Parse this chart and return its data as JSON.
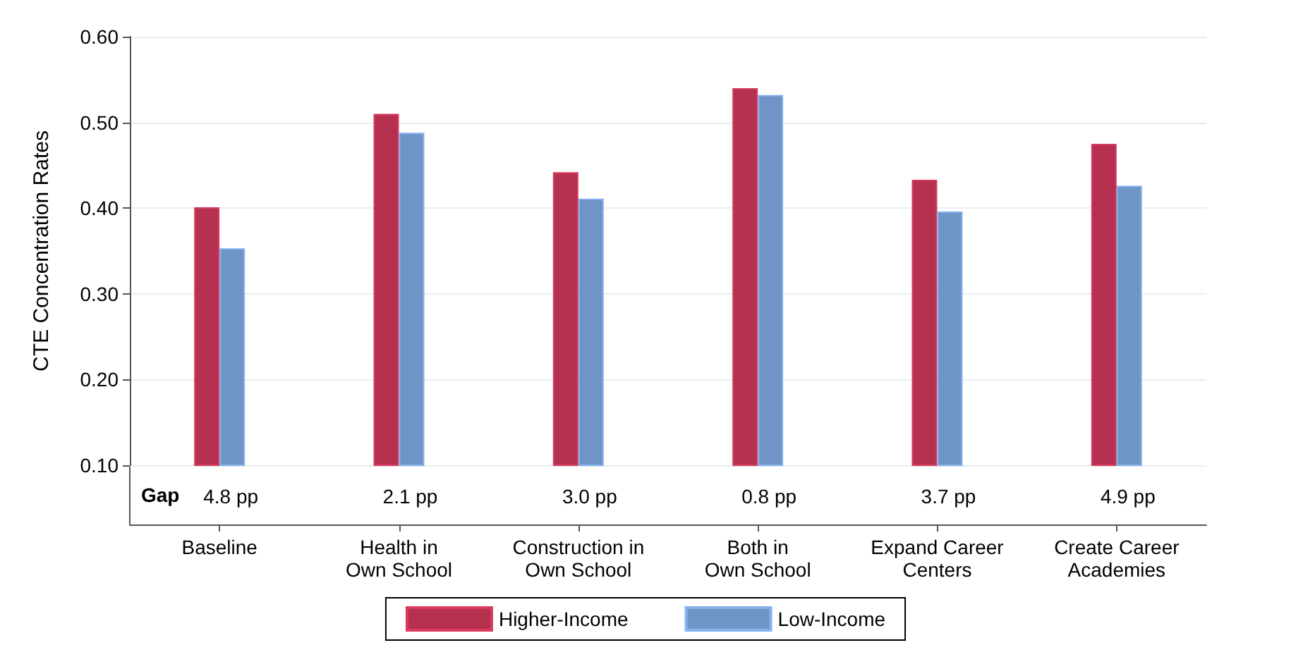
{
  "chart_data": {
    "type": "bar",
    "ylabel": "CTE Concentration Rates",
    "categories": [
      "Baseline",
      "Health in\nOwn School",
      "Construction in\nOwn School",
      "Both in\nOwn School",
      "Expand Career\nCenters",
      "Create Career\nAcademies"
    ],
    "series": [
      {
        "name": "Higher-Income",
        "color": "#b5314f",
        "values": [
          0.401,
          0.51,
          0.442,
          0.54,
          0.433,
          0.475
        ]
      },
      {
        "name": "Low-Income",
        "color": "#6f95c7",
        "values": [
          0.353,
          0.488,
          0.411,
          0.532,
          0.396,
          0.426
        ]
      }
    ],
    "ylim": [
      0.1,
      0.6
    ],
    "yticks": [
      {
        "value": 0.1,
        "label": "0.10"
      },
      {
        "value": 0.2,
        "label": "0.20"
      },
      {
        "value": 0.3,
        "label": "0.30"
      },
      {
        "value": 0.4,
        "label": "0.40"
      },
      {
        "value": 0.5,
        "label": "0.50"
      },
      {
        "value": 0.6,
        "label": "0.60"
      }
    ],
    "grid": "y",
    "legend": "bottom",
    "annotations": [
      "Gap",
      "4.8 pp",
      "2.1 pp",
      "3.0 pp",
      "0.8 pp",
      "3.7 pp",
      "4.9 pp"
    ]
  }
}
